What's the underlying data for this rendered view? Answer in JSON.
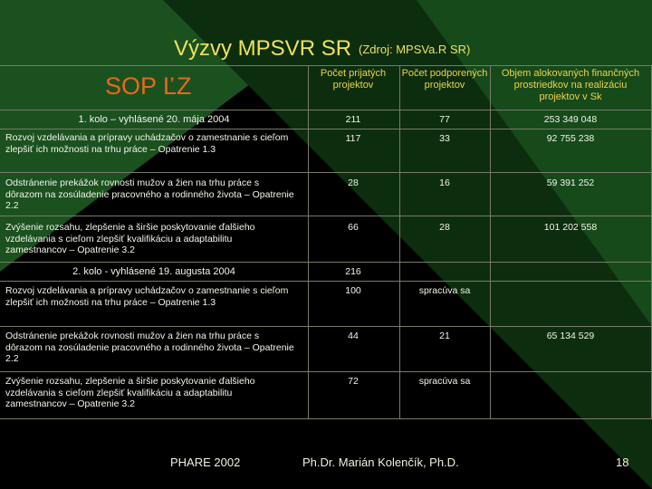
{
  "title": "Výzvy MPSVR SR",
  "source": "(Zdroj: MPSVa.R SR)",
  "program": "SOP ĽZ",
  "headers": {
    "col1": "Počet prijatých projektov",
    "col2": "Počet podporených projektov",
    "col3": "Objem alokovaných finančných prostriedkov na realizáciu projektov v Sk"
  },
  "rounds": [
    {
      "label": "1. kolo – vyhlásené 20. mája 2004",
      "c1": "211",
      "c2": "77",
      "c3": "253 349 048",
      "rows": [
        {
          "label": "Rozvoj vzdelávania a prípravy uchádzačov o zamestnanie s cieľom zlepšiť ich možnosti na trhu práce – Opatrenie 1.3",
          "c1": "117",
          "c2": "33",
          "c3": "92 755 238"
        },
        {
          "label": "Odstránenie prekážok rovnosti mužov a žien na trhu práce s dôrazom na zosúladenie pracovného a rodinného života – Opatrenie 2.2",
          "c1": "28",
          "c2": "16",
          "c3": "59 391 252"
        },
        {
          "label": "Zvýšenie rozsahu, zlepšenie a širšie poskytovanie ďalšieho vzdelávania s cieľom zlepšiť kvalifikáciu a adaptabilitu zamestnancov – Opatrenie 3.2",
          "c1": "66",
          "c2": "28",
          "c3": "101 202 558"
        }
      ]
    },
    {
      "label": "2. kolo - vyhlásené 19. augusta 2004",
      "c1": "216",
      "c2": "",
      "c3": "",
      "rows": [
        {
          "label": "Rozvoj vzdelávania a prípravy uchádzačov o zamestnanie s cieľom zlepšiť ich možnosti na trhu práce – Opatrenie 1.3",
          "c1": "100",
          "c2": "spracúva sa",
          "c3": ""
        },
        {
          "label": "Odstránenie prekážok rovnosti mužov a žien na trhu práce s dôrazom na zosúladenie pracovného a rodinného života – Opatrenie 2.2",
          "c1": "44",
          "c2": "21",
          "c3": "65 134 529"
        },
        {
          "label": "Zvýšenie rozsahu, zlepšenie a širšie poskytovanie ďalšieho vzdelávania s cieľom zlepšiť kvalifikáciu a adaptabilitu zamestnancov – Opatrenie 3.2",
          "c1": "72",
          "c2": "spracúva sa",
          "c3": ""
        }
      ]
    }
  ],
  "footer": {
    "left": "PHARE 2002",
    "center": "Ph.Dr. Marián Kolenčík, Ph.D.",
    "page": "18"
  }
}
